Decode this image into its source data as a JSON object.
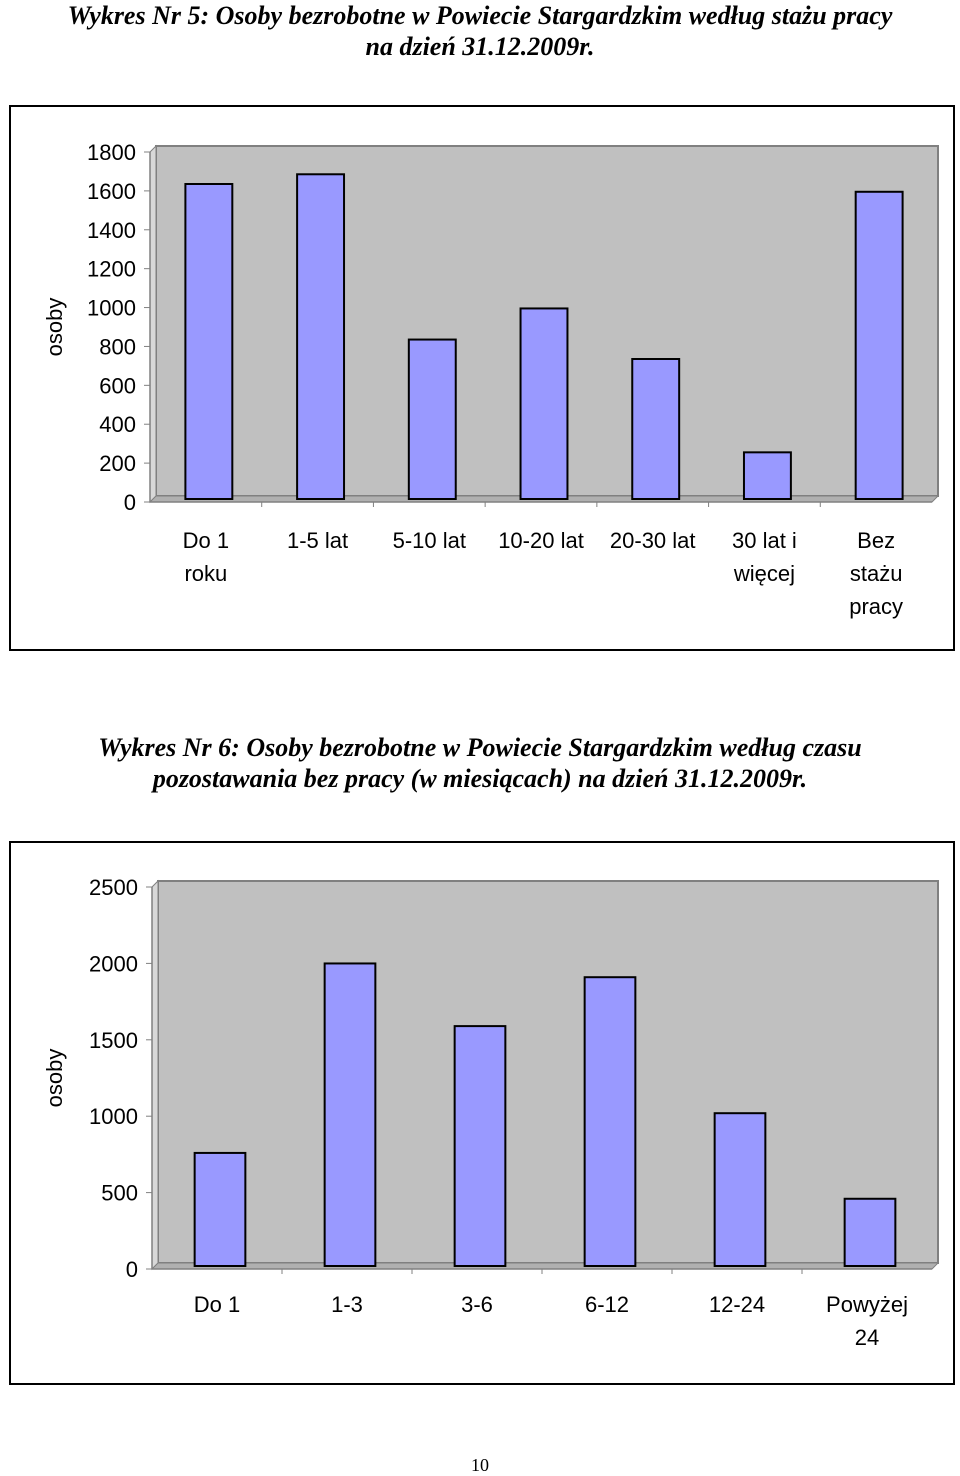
{
  "chart_data": [
    {
      "type": "bar",
      "title": [
        "Wykres Nr 5: Osoby bezrobotne w Powiecie Stargardzkim według stażu pracy",
        "na dzień 31.12.2009r."
      ],
      "ylabel": "osoby",
      "xlabel": "",
      "ylim": [
        0,
        1800
      ],
      "yticks": [
        0,
        200,
        400,
        600,
        800,
        1000,
        1200,
        1400,
        1600,
        1800
      ],
      "categories": [
        [
          "Do 1",
          "roku"
        ],
        [
          "1-5 lat"
        ],
        [
          "5-10 lat"
        ],
        [
          "10-20 lat"
        ],
        [
          "20-30 lat"
        ],
        [
          "30 lat i",
          "więcej"
        ],
        [
          "Bez",
          "stażu",
          "pracy"
        ]
      ],
      "values": [
        1620,
        1670,
        820,
        980,
        720,
        240,
        1580
      ],
      "grid": false,
      "colors": {
        "bar": "#9999ff",
        "plot_bg": "#c0c0c0",
        "border": "#000000"
      }
    },
    {
      "type": "bar",
      "title": [
        "Wykres Nr 6: Osoby bezrobotne w Powiecie Stargardzkim według czasu",
        "pozostawania bez pracy (w miesiącach) na dzień 31.12.2009r."
      ],
      "ylabel": "osoby",
      "xlabel": "",
      "ylim": [
        0,
        2500
      ],
      "yticks": [
        0,
        500,
        1000,
        1500,
        2000,
        2500
      ],
      "categories": [
        [
          "Do 1"
        ],
        [
          "1-3"
        ],
        [
          "3-6"
        ],
        [
          "6-12"
        ],
        [
          "12-24"
        ],
        [
          "Powyżej",
          "24"
        ]
      ],
      "values": [
        740,
        1980,
        1570,
        1890,
        1000,
        440
      ],
      "grid": false,
      "colors": {
        "bar": "#9999ff",
        "plot_bg": "#c0c0c0",
        "border": "#000000"
      }
    }
  ],
  "page": {
    "number": "10"
  }
}
